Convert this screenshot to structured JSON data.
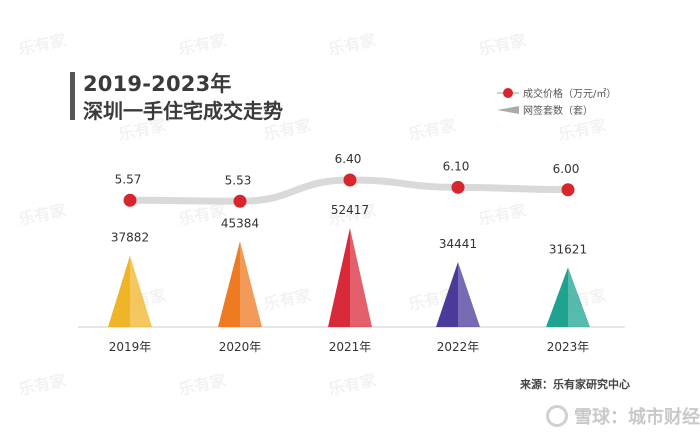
{
  "header": {
    "title_line1": "2019-2023年",
    "title_line2": "深圳一手住宅成交走势"
  },
  "legend": {
    "price_label": "成交价格（万元/㎡）",
    "volume_label": "网签套数（套）"
  },
  "source": "来源：乐有家研究中心",
  "watermark": "乐有家",
  "brand": "雪球：城市财经",
  "colors": {
    "price_line": "#d9d9d9",
    "price_marker": "#d7262e",
    "volume_legend": "#aaaaaa",
    "triangles": [
      "#f0b429",
      "#ee7a22",
      "#d92a3a",
      "#4b3a9a",
      "#1ea391"
    ]
  },
  "chart_data": {
    "type": "bar",
    "categories": [
      "2019年",
      "2020年",
      "2021年",
      "2022年",
      "2023年"
    ],
    "series": [
      {
        "name": "成交价格（万元/㎡）",
        "values": [
          5.57,
          5.53,
          6.4,
          6.1,
          6.0
        ],
        "labels": [
          "5.57",
          "5.53",
          "6.40",
          "6.10",
          "6.00"
        ]
      },
      {
        "name": "网签套数（套）",
        "values": [
          37882,
          45384,
          52417,
          34441,
          31621
        ],
        "labels": [
          "37882",
          "45384",
          "52417",
          "34441",
          "31621"
        ]
      }
    ],
    "grid": false,
    "legend": "top-right"
  }
}
